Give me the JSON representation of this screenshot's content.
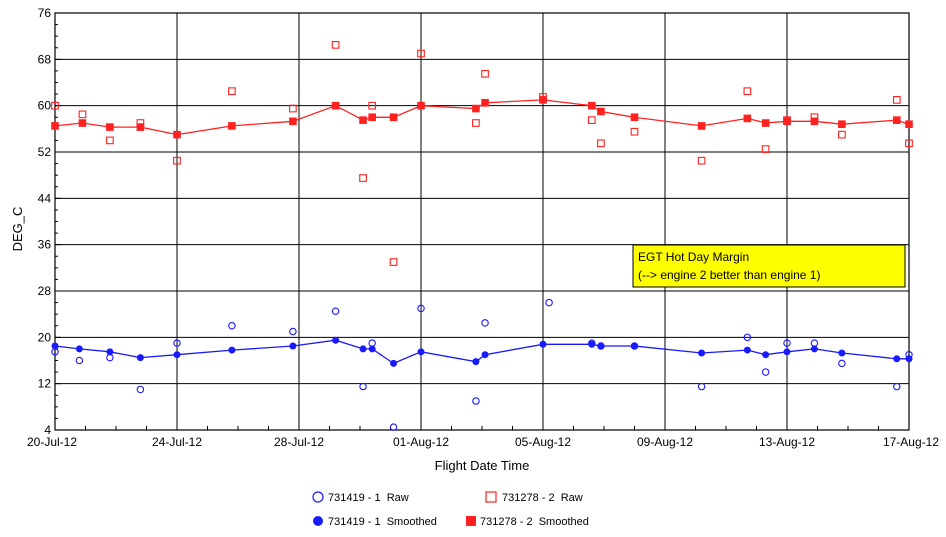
{
  "chart_data": {
    "type": "scatter",
    "xlabel": "Flight Date Time",
    "ylabel": "DEG_C",
    "xlim": [
      "2012-07-20",
      "2012-08-17"
    ],
    "ylim": [
      4,
      76
    ],
    "y_ticks": [
      4,
      12,
      20,
      28,
      36,
      44,
      52,
      60,
      68,
      76
    ],
    "x_tick_labels": [
      {
        "date": "2012-07-20",
        "label": "20-Jul-12"
      },
      {
        "date": "2012-07-24",
        "label": "24-Jul-12"
      },
      {
        "date": "2012-07-28",
        "label": "28-Jul-12"
      },
      {
        "date": "2012-08-01",
        "label": "01-Aug-12"
      },
      {
        "date": "2012-08-05",
        "label": "05-Aug-12"
      },
      {
        "date": "2012-08-09",
        "label": "09-Aug-12"
      },
      {
        "date": "2012-08-13",
        "label": "13-Aug-12"
      },
      {
        "date": "2012-08-17",
        "label": "17-Aug-12"
      }
    ],
    "grid": true,
    "legend_position": "bottom",
    "annotation": {
      "lines": [
        "EGT Hot Day Margin",
        "(--> engine 2 better than engine 1)"
      ],
      "background": "#ffff00"
    },
    "series": [
      {
        "name": "731419 - 1  Raw",
        "color": "#1a1aff",
        "marker": "open-circle",
        "line": false,
        "points": [
          {
            "x": "2012-07-20 00:00",
            "y": 17.5
          },
          {
            "x": "2012-07-20 19:12",
            "y": 16.0
          },
          {
            "x": "2012-07-21 19:12",
            "y": 16.5
          },
          {
            "x": "2012-07-22 19:12",
            "y": 11.0
          },
          {
            "x": "2012-07-24 00:00",
            "y": 19.0
          },
          {
            "x": "2012-07-25 19:12",
            "y": 22.0
          },
          {
            "x": "2012-07-27 19:12",
            "y": 21.0
          },
          {
            "x": "2012-07-29 04:48",
            "y": 24.5
          },
          {
            "x": "2012-07-30 02:24",
            "y": 11.5
          },
          {
            "x": "2012-07-30 09:36",
            "y": 19.0
          },
          {
            "x": "2012-07-31 02:24",
            "y": 4.5
          },
          {
            "x": "2012-08-01 00:00",
            "y": 25.0
          },
          {
            "x": "2012-08-02 19:12",
            "y": 9.0
          },
          {
            "x": "2012-08-03 02:24",
            "y": 22.5
          },
          {
            "x": "2012-08-05 04:48",
            "y": 26.0
          },
          {
            "x": "2012-08-06 14:24",
            "y": 19.0
          },
          {
            "x": "2012-08-06 21:36",
            "y": 18.5
          },
          {
            "x": "2012-08-08 00:00",
            "y": 18.5
          },
          {
            "x": "2012-08-10 04:48",
            "y": 11.5
          },
          {
            "x": "2012-08-11 16:48",
            "y": 20.0
          },
          {
            "x": "2012-08-12 07:12",
            "y": 14.0
          },
          {
            "x": "2012-08-13 00:00",
            "y": 19.0
          },
          {
            "x": "2012-08-13 21:36",
            "y": 19.0
          },
          {
            "x": "2012-08-14 19:12",
            "y": 15.5
          },
          {
            "x": "2012-08-16 14:24",
            "y": 11.5
          },
          {
            "x": "2012-08-17 00:00",
            "y": 17.0
          }
        ]
      },
      {
        "name": "731278 - 2  Raw",
        "color": "#ff2020",
        "marker": "open-square",
        "line": false,
        "points": [
          {
            "x": "2012-07-20 00:00",
            "y": 60.0
          },
          {
            "x": "2012-07-20 21:36",
            "y": 58.5
          },
          {
            "x": "2012-07-21 19:12",
            "y": 54.0
          },
          {
            "x": "2012-07-22 19:12",
            "y": 57.0
          },
          {
            "x": "2012-07-24 00:00",
            "y": 50.5
          },
          {
            "x": "2012-07-25 19:12",
            "y": 62.5
          },
          {
            "x": "2012-07-27 19:12",
            "y": 59.5
          },
          {
            "x": "2012-07-29 04:48",
            "y": 70.5
          },
          {
            "x": "2012-07-30 02:24",
            "y": 47.5
          },
          {
            "x": "2012-07-30 09:36",
            "y": 60.0
          },
          {
            "x": "2012-07-31 02:24",
            "y": 33.0
          },
          {
            "x": "2012-08-01 00:00",
            "y": 69.0
          },
          {
            "x": "2012-08-02 19:12",
            "y": 57.0
          },
          {
            "x": "2012-08-03 02:24",
            "y": 65.5
          },
          {
            "x": "2012-08-05 00:00",
            "y": 61.5
          },
          {
            "x": "2012-08-06 14:24",
            "y": 57.5
          },
          {
            "x": "2012-08-06 21:36",
            "y": 53.5
          },
          {
            "x": "2012-08-08 00:00",
            "y": 55.5
          },
          {
            "x": "2012-08-10 04:48",
            "y": 50.5
          },
          {
            "x": "2012-08-11 16:48",
            "y": 62.5
          },
          {
            "x": "2012-08-12 07:12",
            "y": 52.5
          },
          {
            "x": "2012-08-13 00:00",
            "y": 57.5
          },
          {
            "x": "2012-08-13 21:36",
            "y": 58.0
          },
          {
            "x": "2012-08-14 19:12",
            "y": 55.0
          },
          {
            "x": "2012-08-16 14:24",
            "y": 61.0
          },
          {
            "x": "2012-08-17 00:00",
            "y": 53.5
          }
        ]
      },
      {
        "name": "731419 - 1  Smoothed",
        "color": "#1a1aff",
        "marker": "filled-circle",
        "line": true,
        "points": [
          {
            "x": "2012-07-20 00:00",
            "y": 18.5
          },
          {
            "x": "2012-07-20 19:12",
            "y": 18.0
          },
          {
            "x": "2012-07-21 19:12",
            "y": 17.5
          },
          {
            "x": "2012-07-22 19:12",
            "y": 16.5
          },
          {
            "x": "2012-07-24 00:00",
            "y": 17.0
          },
          {
            "x": "2012-07-25 19:12",
            "y": 17.8
          },
          {
            "x": "2012-07-27 19:12",
            "y": 18.5
          },
          {
            "x": "2012-07-29 04:48",
            "y": 19.5
          },
          {
            "x": "2012-07-30 02:24",
            "y": 18.0
          },
          {
            "x": "2012-07-30 09:36",
            "y": 18.0
          },
          {
            "x": "2012-07-31 02:24",
            "y": 15.5
          },
          {
            "x": "2012-08-01 00:00",
            "y": 17.5
          },
          {
            "x": "2012-08-02 19:12",
            "y": 15.8
          },
          {
            "x": "2012-08-03 02:24",
            "y": 17.0
          },
          {
            "x": "2012-08-05 00:00",
            "y": 18.8
          },
          {
            "x": "2012-08-06 14:24",
            "y": 18.8
          },
          {
            "x": "2012-08-06 21:36",
            "y": 18.5
          },
          {
            "x": "2012-08-08 00:00",
            "y": 18.5
          },
          {
            "x": "2012-08-10 04:48",
            "y": 17.3
          },
          {
            "x": "2012-08-11 16:48",
            "y": 17.8
          },
          {
            "x": "2012-08-12 07:12",
            "y": 17.0
          },
          {
            "x": "2012-08-13 00:00",
            "y": 17.5
          },
          {
            "x": "2012-08-13 21:36",
            "y": 18.0
          },
          {
            "x": "2012-08-14 19:12",
            "y": 17.3
          },
          {
            "x": "2012-08-16 14:24",
            "y": 16.3
          },
          {
            "x": "2012-08-17 00:00",
            "y": 16.3
          }
        ]
      },
      {
        "name": "731278 - 2  Smoothed",
        "color": "#ff2020",
        "marker": "filled-square",
        "line": true,
        "points": [
          {
            "x": "2012-07-20 00:00",
            "y": 56.5
          },
          {
            "x": "2012-07-20 21:36",
            "y": 57.0
          },
          {
            "x": "2012-07-21 19:12",
            "y": 56.3
          },
          {
            "x": "2012-07-22 19:12",
            "y": 56.3
          },
          {
            "x": "2012-07-24 00:00",
            "y": 55.0
          },
          {
            "x": "2012-07-25 19:12",
            "y": 56.5
          },
          {
            "x": "2012-07-27 19:12",
            "y": 57.3
          },
          {
            "x": "2012-07-29 04:48",
            "y": 60.0
          },
          {
            "x": "2012-07-30 02:24",
            "y": 57.5
          },
          {
            "x": "2012-07-30 09:36",
            "y": 58.0
          },
          {
            "x": "2012-07-31 02:24",
            "y": 58.0
          },
          {
            "x": "2012-08-01 00:00",
            "y": 60.0
          },
          {
            "x": "2012-08-02 19:12",
            "y": 59.5
          },
          {
            "x": "2012-08-03 02:24",
            "y": 60.5
          },
          {
            "x": "2012-08-05 00:00",
            "y": 61.0
          },
          {
            "x": "2012-08-06 14:24",
            "y": 60.0
          },
          {
            "x": "2012-08-06 21:36",
            "y": 59.0
          },
          {
            "x": "2012-08-08 00:00",
            "y": 58.0
          },
          {
            "x": "2012-08-10 04:48",
            "y": 56.5
          },
          {
            "x": "2012-08-11 16:48",
            "y": 57.8
          },
          {
            "x": "2012-08-12 07:12",
            "y": 57.0
          },
          {
            "x": "2012-08-13 00:00",
            "y": 57.3
          },
          {
            "x": "2012-08-13 21:36",
            "y": 57.3
          },
          {
            "x": "2012-08-14 19:12",
            "y": 56.8
          },
          {
            "x": "2012-08-16 14:24",
            "y": 57.5
          },
          {
            "x": "2012-08-17 00:00",
            "y": 56.8
          }
        ]
      }
    ]
  }
}
